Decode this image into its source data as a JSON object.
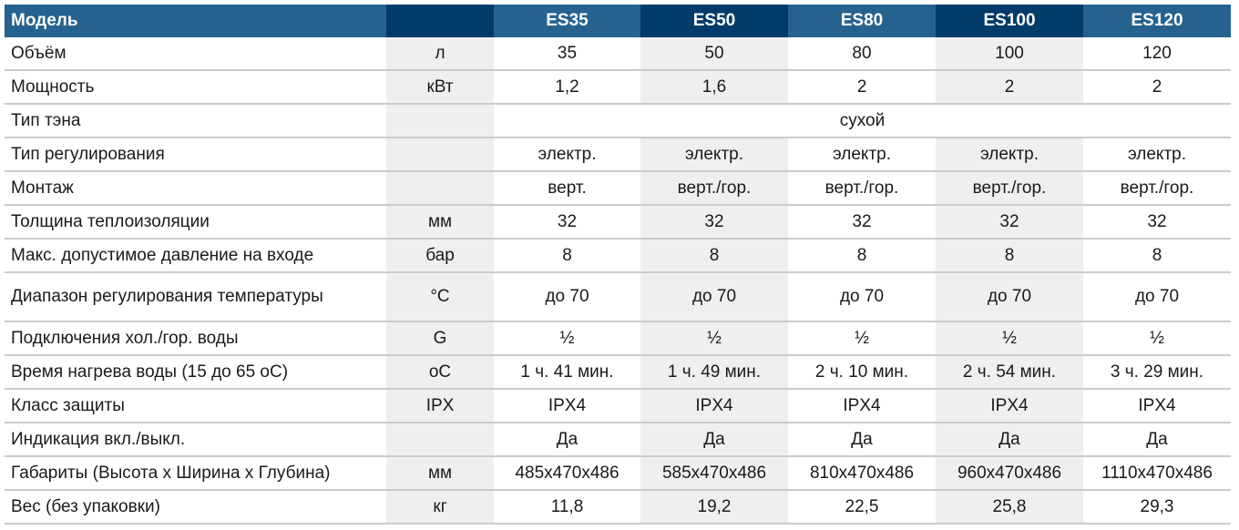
{
  "header": {
    "label": "Модель",
    "unit": "",
    "models": [
      "ES35",
      "ES50",
      "ES80",
      "ES100",
      "ES120"
    ]
  },
  "colors": {
    "header_medium": "#26628f",
    "header_dark": "#003b69",
    "shaded_column": "#efeff1",
    "row_divider": "#cbcbcb"
  },
  "rows": [
    {
      "label": "Объём",
      "unit": "л",
      "values": [
        "35",
        "50",
        "80",
        "100",
        "120"
      ]
    },
    {
      "label": "Мощность",
      "unit": "кВт",
      "values": [
        "1,2",
        "1,6",
        "2",
        "2",
        "2"
      ]
    },
    {
      "label": "Тип тэна",
      "unit": "",
      "merged": "сухой"
    },
    {
      "label": "Тип регулирования",
      "unit": "",
      "values": [
        "электр.",
        "электр.",
        "электр.",
        "электр.",
        "электр."
      ]
    },
    {
      "label": "Монтаж",
      "unit": "",
      "values": [
        "верт.",
        "верт./гор.",
        "верт./гор.",
        "верт./гор.",
        "верт./гор."
      ]
    },
    {
      "label": "Толщина теплоизоляции",
      "unit": "мм",
      "values": [
        "32",
        "32",
        "32",
        "32",
        "32"
      ]
    },
    {
      "label": "Макс. допустимое давление на входе",
      "unit": "бар",
      "values": [
        "8",
        "8",
        "8",
        "8",
        "8"
      ]
    },
    {
      "label": "Диапазон регулирования температуры",
      "unit": "°C",
      "values": [
        "до 70",
        "до 70",
        "до 70",
        "до 70",
        "до 70"
      ],
      "tall": true
    },
    {
      "label": "Подключения хол./гор. воды",
      "unit": "G",
      "values": [
        "½",
        "½",
        "½",
        "½",
        "½"
      ]
    },
    {
      "label": "Время нагрева воды (15 до 65 оС)",
      "unit": "оС",
      "values": [
        "1 ч. 41 мин.",
        "1 ч. 49 мин.",
        "2 ч. 10 мин.",
        "2 ч. 54 мин.",
        "3 ч. 29 мин."
      ]
    },
    {
      "label": "Класс защиты",
      "unit": "IPX",
      "values": [
        "IPX4",
        "IPX4",
        "IPX4",
        "IPX4",
        "IPX4"
      ]
    },
    {
      "label": "Индикация вкл./выкл.",
      "unit": "",
      "values": [
        "Да",
        "Да",
        "Да",
        "Да",
        "Да"
      ]
    },
    {
      "label": "Габариты (Высота х Ширина х Глубина)",
      "unit": "мм",
      "values": [
        "485x470x486",
        "585x470x486",
        "810x470x486",
        "960x470x486",
        "1110x470x486"
      ]
    },
    {
      "label": "Вес (без упаковки)",
      "unit": "кг",
      "values": [
        "11,8",
        "19,2",
        "22,5",
        "25,8",
        "29,3"
      ]
    }
  ]
}
